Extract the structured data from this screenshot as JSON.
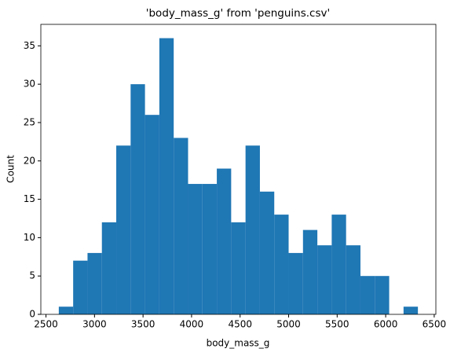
{
  "chart_data": {
    "type": "histogram",
    "title": "'body_mass_g' from 'penguins.csv'",
    "x_label": "body_mass_g",
    "y_label": "Count",
    "bins": [
      2632,
      2780,
      2928,
      3076,
      3224,
      3372,
      3520,
      3668,
      3816,
      3964,
      4112,
      4260,
      4408,
      4556,
      4704,
      4852,
      5000,
      5148,
      5296,
      5444,
      5592,
      5740,
      5888,
      6036,
      6184,
      6332
    ],
    "values": [
      1,
      7,
      8,
      12,
      22,
      30,
      26,
      36,
      23,
      17,
      17,
      19,
      12,
      22,
      16,
      13,
      8,
      11,
      9,
      13,
      9,
      5,
      5,
      0,
      1
    ],
    "color": "#1f77b4",
    "xlim": [
      2447,
      6517
    ],
    "xticks": [
      2500,
      3000,
      3500,
      4000,
      4500,
      5000,
      5500,
      6000,
      6500
    ],
    "ylim": [
      0,
      37.8
    ],
    "yticks": [
      0,
      5,
      10,
      15,
      20,
      25,
      30,
      35
    ],
    "grid": false
  }
}
